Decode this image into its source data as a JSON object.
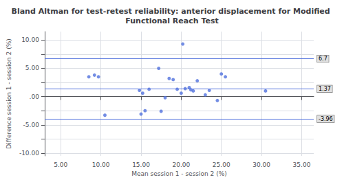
{
  "chart_data": {
    "type": "scatter",
    "title": "Bland Altman for test-retest reliability: anterior displacement for Modified Functional Reach Test",
    "xlabel": "Mean session 1 - session 2 (%)",
    "ylabel": "Difference session 1 - session 2 (%)",
    "x": [
      8.5,
      9.2,
      9.7,
      10.5,
      14.8,
      15.0,
      15.2,
      15.5,
      16.0,
      17.2,
      17.5,
      18.0,
      18.5,
      19.0,
      19.5,
      20.0,
      20.2,
      20.5,
      21.0,
      21.2,
      21.5,
      22.0,
      23.0,
      23.5,
      24.5,
      25.0,
      25.5,
      30.5
    ],
    "values": [
      3.5,
      3.8,
      3.5,
      -3.3,
      1.1,
      -3.1,
      0.6,
      -2.5,
      1.3,
      5.0,
      -2.6,
      -0.2,
      3.2,
      3.0,
      1.3,
      0.6,
      9.3,
      1.4,
      1.6,
      1.2,
      1.0,
      2.8,
      0.3,
      1.1,
      -0.7,
      4.0,
      3.5,
      1.0
    ],
    "hlines": [
      {
        "y": 6.7,
        "label": "6.7"
      },
      {
        "y": 1.37,
        "label": "1.37"
      },
      {
        "y": -3.96,
        "label": "-3.96"
      }
    ],
    "xlim": [
      3.0,
      36.5
    ],
    "ylim": [
      -10.5,
      11.5
    ],
    "xticks": [
      {
        "value": 5.0,
        "label": "5.00"
      },
      {
        "value": 10.0,
        "label": "10.00"
      },
      {
        "value": 15.0,
        "label": "15.00"
      },
      {
        "value": 20.0,
        "label": "20.00"
      },
      {
        "value": 25.0,
        "label": "25.00"
      },
      {
        "value": 30.0,
        "label": "30.00"
      },
      {
        "value": 35.0,
        "label": "35.00"
      }
    ],
    "yticks": [
      {
        "value": -10.0,
        "label": "-10.00"
      },
      {
        "value": -7.5,
        "label": null
      },
      {
        "value": -5.0,
        "label": "-5.00"
      },
      {
        "value": -2.5,
        "label": null
      },
      {
        "value": 0.0,
        "label": ".00"
      },
      {
        "value": 2.5,
        "label": null
      },
      {
        "value": 5.0,
        "label": "5.00"
      },
      {
        "value": 7.5,
        "label": null
      },
      {
        "value": 10.0,
        "label": "10.00"
      }
    ],
    "grid": true
  }
}
